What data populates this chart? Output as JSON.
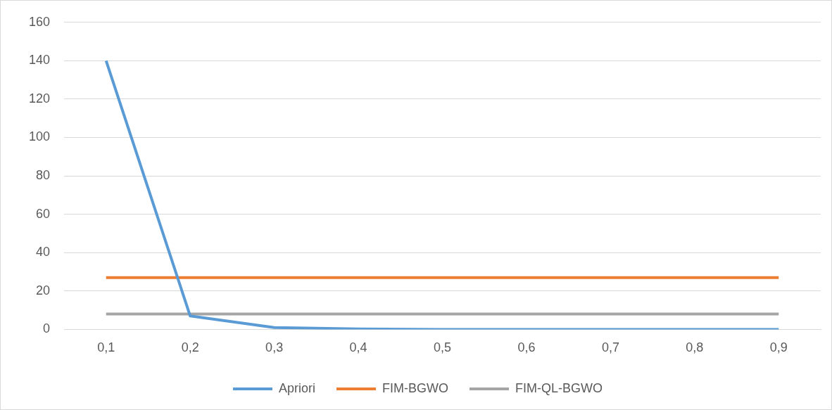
{
  "chart_data": {
    "type": "line",
    "categories": [
      "0,1",
      "0,2",
      "0,3",
      "0,4",
      "0,5",
      "0,6",
      "0,7",
      "0,8",
      "0,9"
    ],
    "series": [
      {
        "name": "Apriori",
        "color": "#5b9bd5",
        "values": [
          140,
          7,
          1,
          0.2,
          0,
          0,
          0,
          0,
          0
        ]
      },
      {
        "name": "FIM-BGWO",
        "color": "#ed7d31",
        "values": [
          27,
          27,
          27,
          27,
          27,
          27,
          27,
          27,
          27
        ]
      },
      {
        "name": "FIM-QL-BGWO",
        "color": "#a5a5a5",
        "values": [
          8,
          8,
          8,
          8,
          8,
          8,
          8,
          8,
          8
        ]
      }
    ],
    "ylim": [
      0,
      160
    ],
    "yticks": [
      0,
      20,
      40,
      60,
      80,
      100,
      120,
      140,
      160
    ],
    "grid": "y",
    "legend": "bottom",
    "marker": "none",
    "line_style": "solid"
  }
}
